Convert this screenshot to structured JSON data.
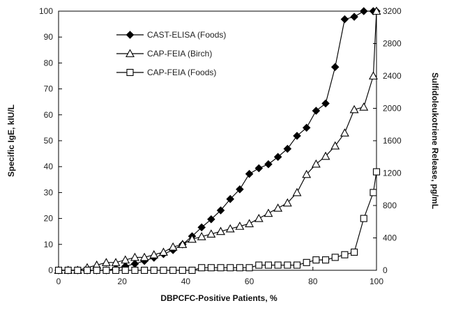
{
  "chart_data": {
    "type": "line",
    "title": "",
    "xlabel": "DBPCFC-Positive Patients, %",
    "ylabel": "Specific IgE, kIU/L",
    "y2label": "Sulfidoleukotriene Release, pg/mL",
    "xlim": [
      0,
      100
    ],
    "ylim": [
      0,
      100
    ],
    "y2lim": [
      0,
      3200
    ],
    "xticks": [
      0,
      20,
      40,
      60,
      80,
      100
    ],
    "yticks": [
      0,
      10,
      20,
      30,
      40,
      50,
      60,
      70,
      80,
      90,
      100
    ],
    "y2ticks": [
      0,
      400,
      800,
      1200,
      1600,
      2000,
      2400,
      2800,
      3200
    ],
    "legend_position": "top-left",
    "grid": false,
    "series": [
      {
        "name": "CAST-ELISA (Foods)",
        "axis": "right",
        "marker": "filled-diamond",
        "color": "#000000",
        "x": [
          0,
          3,
          6,
          9,
          12,
          15,
          18,
          21,
          24,
          27,
          30,
          33,
          36,
          39,
          42,
          45,
          48,
          51,
          54,
          57,
          60,
          63,
          66,
          69,
          72,
          75,
          78,
          81,
          84,
          87,
          90,
          93,
          96,
          99,
          100
        ],
        "values": [
          0,
          0,
          0,
          0,
          0,
          0,
          20,
          50,
          80,
          115,
          155,
          200,
          250,
          320,
          420,
          530,
          630,
          740,
          880,
          1000,
          1190,
          1260,
          1310,
          1400,
          1500,
          1660,
          1760,
          1970,
          2060,
          2510,
          3100,
          3130,
          3200,
          3200,
          3200
        ]
      },
      {
        "name": "CAP-FEIA (Birch)",
        "axis": "left",
        "marker": "open-triangle",
        "color": "#000000",
        "x": [
          0,
          3,
          6,
          9,
          12,
          15,
          18,
          21,
          24,
          27,
          30,
          33,
          36,
          39,
          42,
          45,
          48,
          51,
          54,
          57,
          60,
          63,
          66,
          69,
          72,
          75,
          78,
          81,
          84,
          87,
          90,
          93,
          96,
          99,
          100
        ],
        "values": [
          0,
          0,
          0,
          1,
          2,
          3,
          3,
          4,
          5,
          5,
          6,
          7,
          9,
          10,
          12,
          13,
          14,
          15,
          16,
          17,
          18,
          20,
          22,
          24,
          26,
          30,
          37,
          41,
          44,
          48,
          53,
          62,
          63,
          75,
          100
        ]
      },
      {
        "name": "CAP-FEIA (Foods)",
        "axis": "left",
        "marker": "open-square",
        "color": "#000000",
        "x": [
          0,
          3,
          6,
          9,
          12,
          15,
          18,
          21,
          24,
          27,
          30,
          33,
          36,
          39,
          42,
          45,
          48,
          51,
          54,
          57,
          60,
          63,
          66,
          69,
          72,
          75,
          78,
          81,
          84,
          87,
          90,
          93,
          96,
          99,
          100
        ],
        "values": [
          0,
          0,
          0,
          0,
          0,
          0,
          0,
          0,
          0,
          0,
          0,
          0,
          0,
          0,
          0,
          1,
          1,
          1,
          1,
          1,
          1,
          2,
          2,
          2,
          2,
          2,
          3,
          4,
          4,
          5,
          6,
          7,
          20,
          30,
          38
        ]
      }
    ]
  }
}
